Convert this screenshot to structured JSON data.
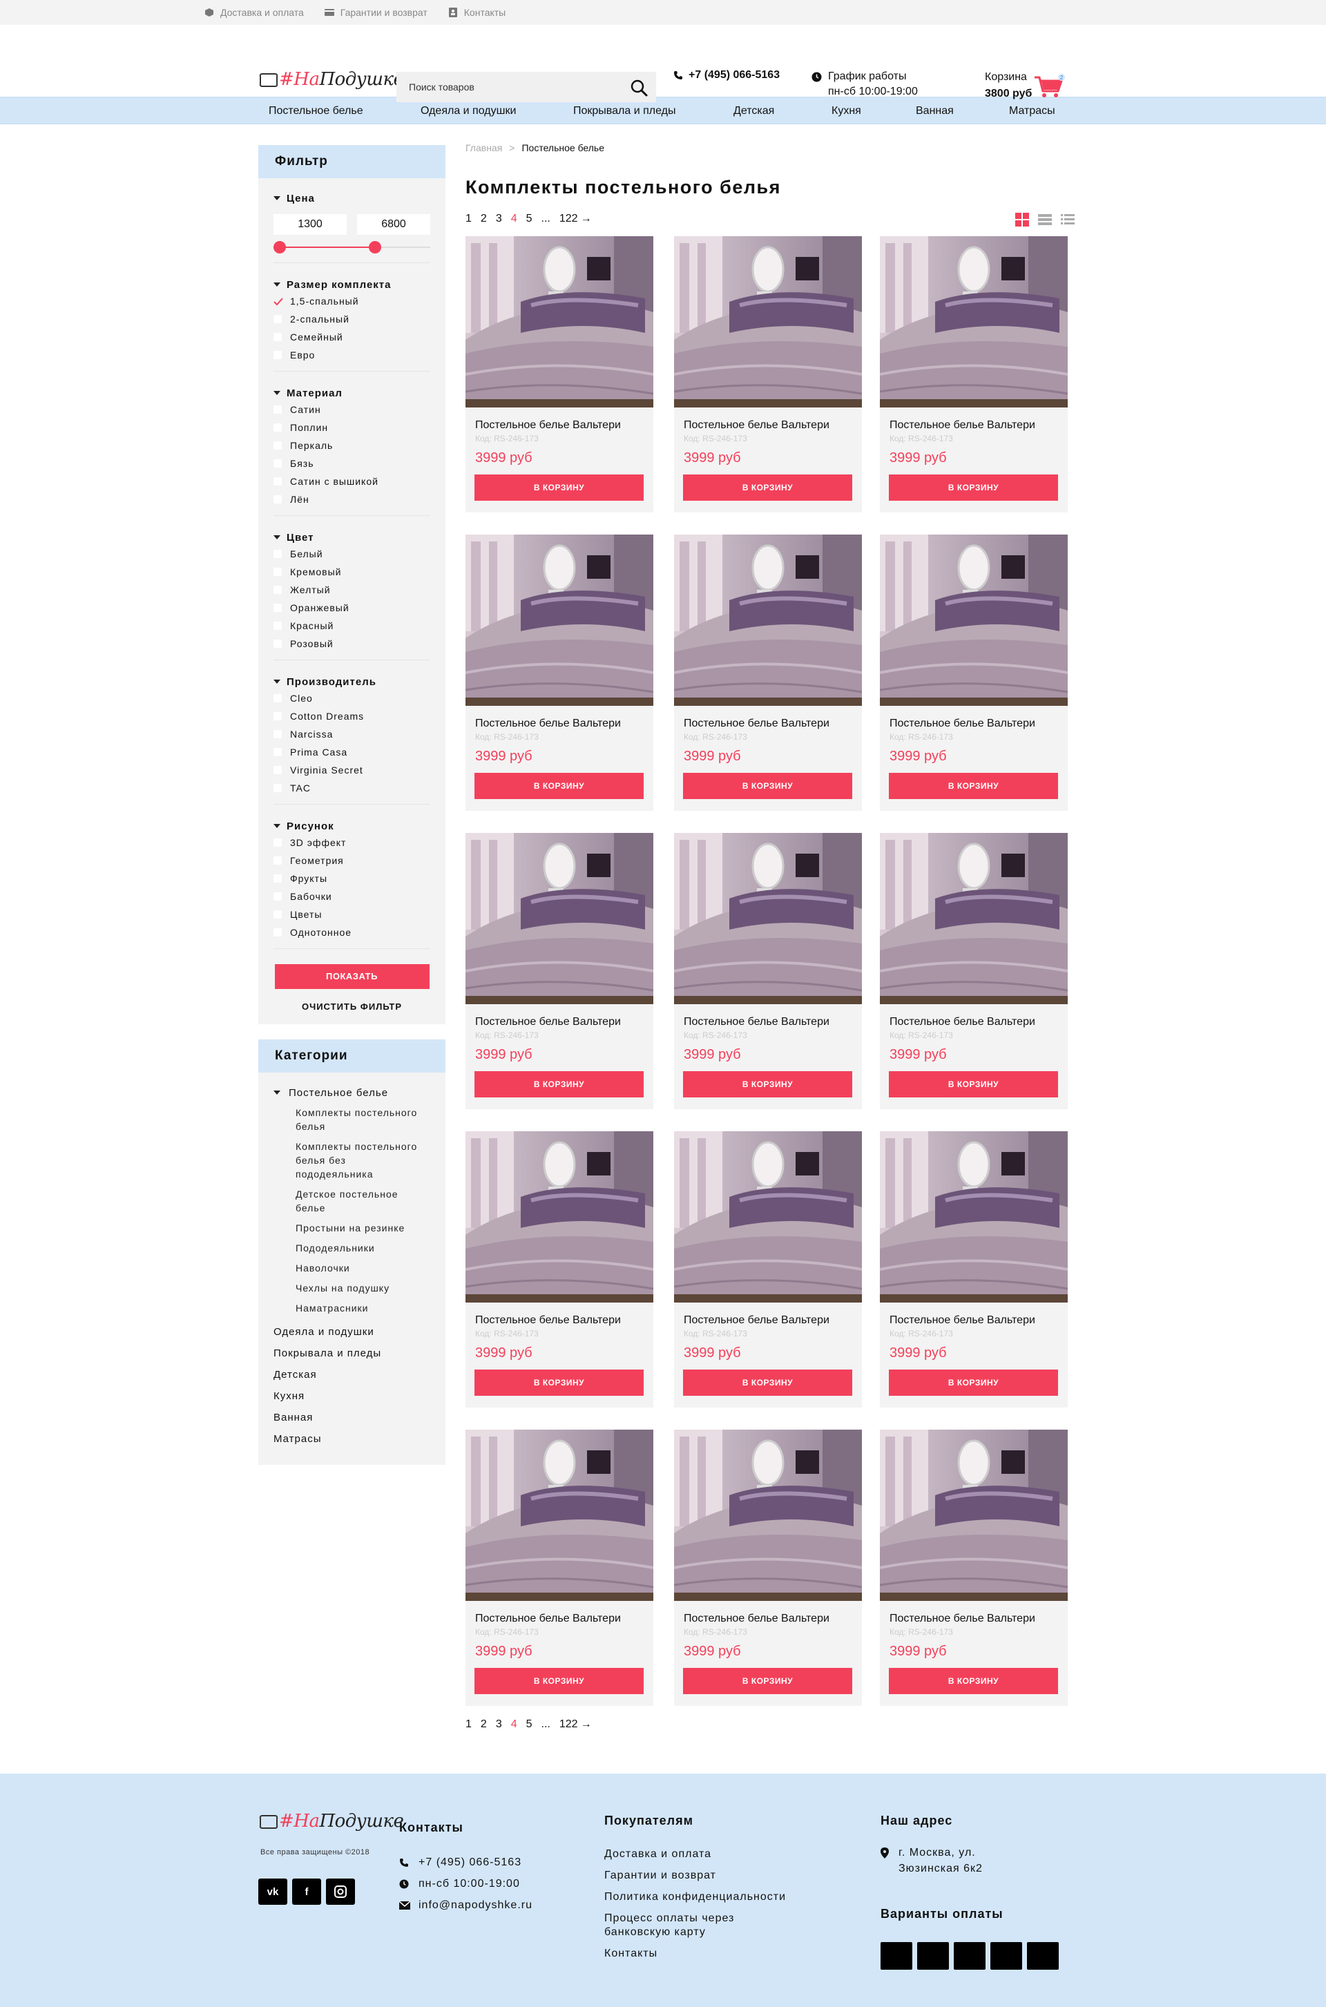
{
  "topbar": {
    "links": [
      {
        "label": "Доставка и оплата",
        "icon": "box-icon"
      },
      {
        "label": "Гарантии и возврат",
        "icon": "card-icon"
      },
      {
        "label": "Контакты",
        "icon": "contacts-icon"
      }
    ]
  },
  "header": {
    "logo": {
      "hash": "#",
      "na": "На",
      "rest": "Подушке"
    },
    "search_placeholder": "Поиск товаров",
    "phone": "+7 (495) 066-5163",
    "hours_title": "График работы",
    "hours_value": "пн-сб 10:00-19:00",
    "cart_label": "Корзина",
    "cart_total": "3800 руб",
    "cart_count": "2"
  },
  "nav": [
    "Постельное белье",
    "Одеяла и подушки",
    "Покрывала и пледы",
    "Детская",
    "Кухня",
    "Ванная",
    "Матрасы"
  ],
  "filter": {
    "title": "Фильтр",
    "price": {
      "title": "Цена",
      "min": "1300",
      "max": "6800"
    },
    "groups": [
      {
        "title": "Размер комплекта",
        "options": [
          "1,5-спальный",
          "2-спальный",
          "Семейный",
          "Евро"
        ],
        "checked": 0
      },
      {
        "title": "Материал",
        "options": [
          "Сатин",
          "Поплин",
          "Перкаль",
          "Бязь",
          "Сатин с вышикой",
          "Лён"
        ],
        "checked": -1
      },
      {
        "title": "Цвет",
        "options": [
          "Белый",
          "Кремовый",
          "Желтый",
          "Оранжевый",
          "Красный",
          "Розовый"
        ],
        "checked": -1
      },
      {
        "title": "Производитель",
        "options": [
          "Cleo",
          "Cotton Dreams",
          "Narcissa",
          "Prima Casa",
          "Virginia Secret",
          "TAC"
        ],
        "checked": -1
      },
      {
        "title": "Рисунок",
        "options": [
          "3D эффект",
          "Геометрия",
          "Фрукты",
          "Бабочки",
          "Цветы",
          "Однотонное"
        ],
        "checked": -1
      }
    ],
    "show_label": "ПОКАЗАТЬ",
    "clear_label": "ОЧИСТИТЬ ФИЛЬТР"
  },
  "categories": {
    "title": "Категории",
    "main": "Постельное белье",
    "sub": [
      "Комплекты постельного белья",
      "Комплекты постельного белья без пододеяльника",
      "Детское постельное белье",
      "Простыни на резинке",
      "Пододеяльники",
      "Наволочки",
      "Чехлы на подушку",
      "Наматрасники"
    ],
    "others": [
      "Одеяла и подушки",
      "Покрывала и пледы",
      "Детская",
      "Кухня",
      "Ванная",
      "Матрасы"
    ]
  },
  "breadcrumb": {
    "home": "Главная",
    "separator": ">",
    "current": "Постельное белье"
  },
  "page_title": "Комплекты постельного белья",
  "pagination": {
    "pages": [
      "1",
      "2",
      "3",
      "4",
      "5"
    ],
    "active": "4",
    "ellipsis": "...",
    "last": "122",
    "next": "→"
  },
  "product": {
    "name": "Постельное белье Вальтери",
    "code": "Код: RS-246-173",
    "price": "3999 руб",
    "button": "В КОРЗИНУ",
    "count": 15
  },
  "footer": {
    "logo": {
      "hash": "#",
      "na": "На",
      "rest": "Подушке"
    },
    "copyright": "Все права защищены ©2018",
    "social": [
      "vk-icon",
      "facebook-icon",
      "instagram-icon"
    ],
    "contacts_title": "Контакты",
    "contacts": [
      {
        "icon": "phone-icon",
        "text": "+7 (495) 066-5163"
      },
      {
        "icon": "clock-icon",
        "text": "пн-сб 10:00-19:00"
      },
      {
        "icon": "mail-icon",
        "text": "info@napodyshke.ru"
      }
    ],
    "buyers_title": "Покупателям",
    "buyers_links": [
      "Доставка и оплата",
      "Гарантии и возврат",
      "Политика конфиденциальности",
      "Процесс оплаты через банковскую карту",
      "Контакты"
    ],
    "address_title": "Наш адрес",
    "address": "г. Москва, ул. Зюзинская 6к2",
    "payment_title": "Варианты оплаты",
    "payment_count": 5
  },
  "colors": {
    "accent": "#f3405a",
    "nav_bg": "#d3e6f8",
    "panel_bg": "#f3f3f3"
  }
}
